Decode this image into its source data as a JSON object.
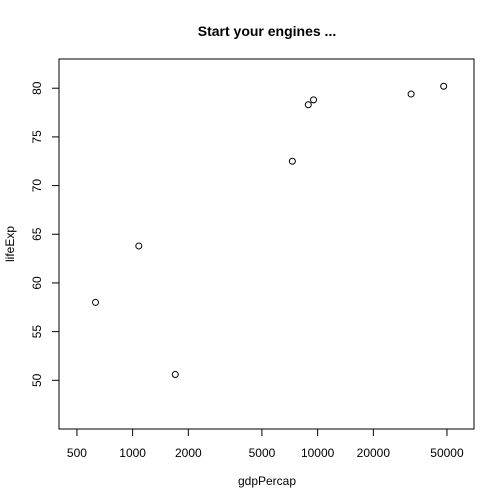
{
  "chart_data": {
    "type": "scatter",
    "title": "Start your engines ...",
    "xlabel": "gdpPercap",
    "ylabel": "lifeExp",
    "xscale": "log",
    "xlim": [
      400,
      70000
    ],
    "ylim": [
      45,
      83
    ],
    "x_ticks": [
      500,
      1000,
      2000,
      5000,
      10000,
      20000,
      50000
    ],
    "x_tick_labels": [
      "500",
      "1000",
      "2000",
      "5000",
      "10000",
      "20000",
      "50000"
    ],
    "y_ticks": [
      50,
      55,
      60,
      65,
      70,
      75,
      80
    ],
    "y_tick_labels": [
      "50",
      "55",
      "60",
      "65",
      "70",
      "75",
      "80"
    ],
    "grid": false,
    "marker": "open-circle",
    "points": [
      {
        "x": 630,
        "y": 58.0
      },
      {
        "x": 1080,
        "y": 63.8
      },
      {
        "x": 1700,
        "y": 50.6
      },
      {
        "x": 7300,
        "y": 72.5
      },
      {
        "x": 8900,
        "y": 78.3
      },
      {
        "x": 9500,
        "y": 78.8
      },
      {
        "x": 32000,
        "y": 79.4
      },
      {
        "x": 48000,
        "y": 80.2
      }
    ]
  }
}
